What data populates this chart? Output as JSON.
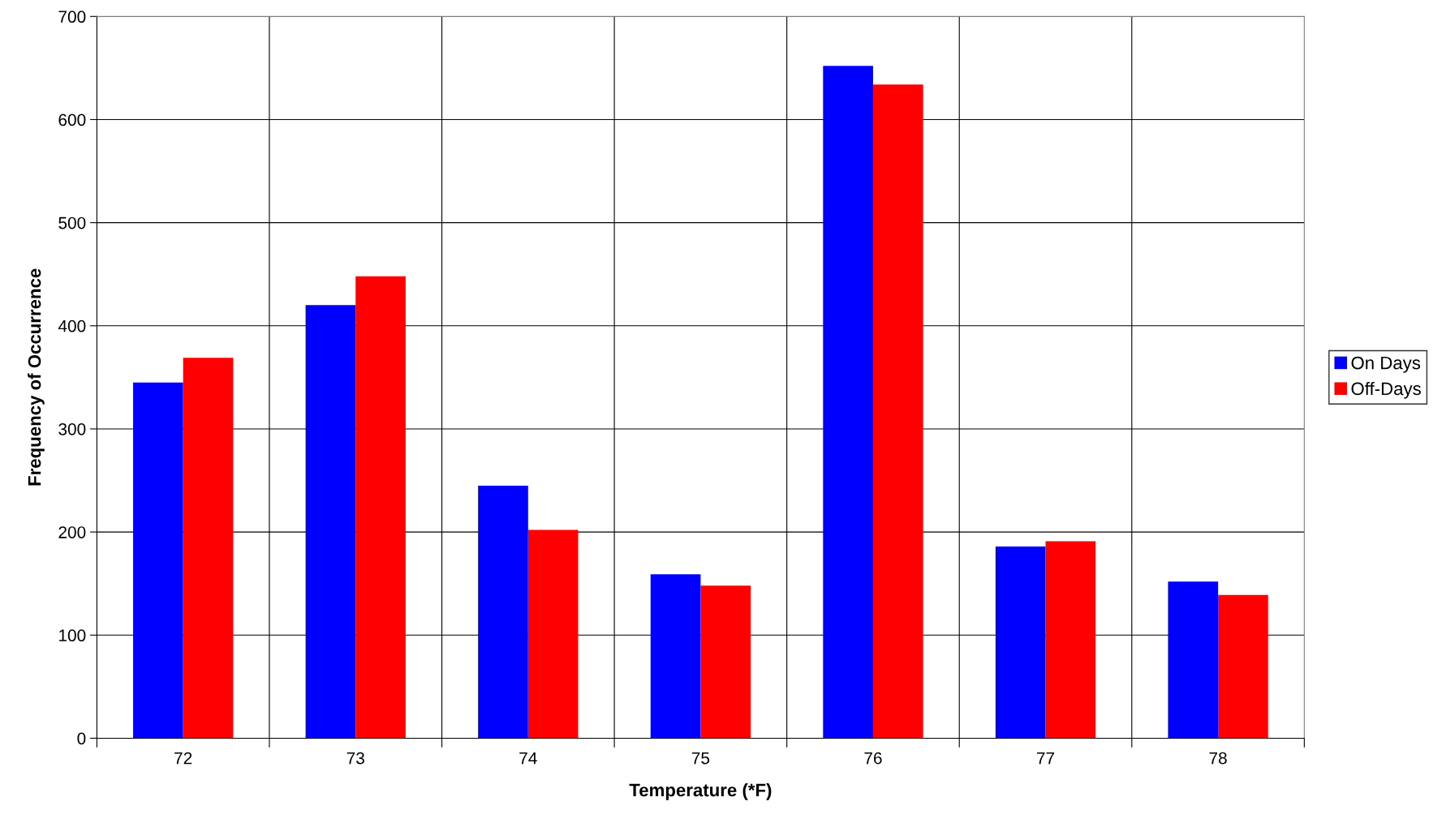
{
  "chart_data": {
    "type": "bar",
    "xlabel": "Temperature (*F)",
    "ylabel": "Frequency of Occurrence",
    "categories": [
      "72",
      "73",
      "74",
      "75",
      "76",
      "77",
      "78"
    ],
    "series": [
      {
        "name": "On Days",
        "color": "#0000ff",
        "values": [
          345,
          420,
          245,
          159,
          652,
          186,
          152
        ]
      },
      {
        "name": "Off-Days",
        "color": "#ff0000",
        "values": [
          369,
          448,
          202,
          148,
          634,
          191,
          139
        ]
      }
    ],
    "ylim": [
      0,
      700
    ],
    "yticks": [
      0,
      100,
      200,
      300,
      400,
      500,
      600,
      700
    ],
    "grid": true,
    "legend": "right"
  }
}
